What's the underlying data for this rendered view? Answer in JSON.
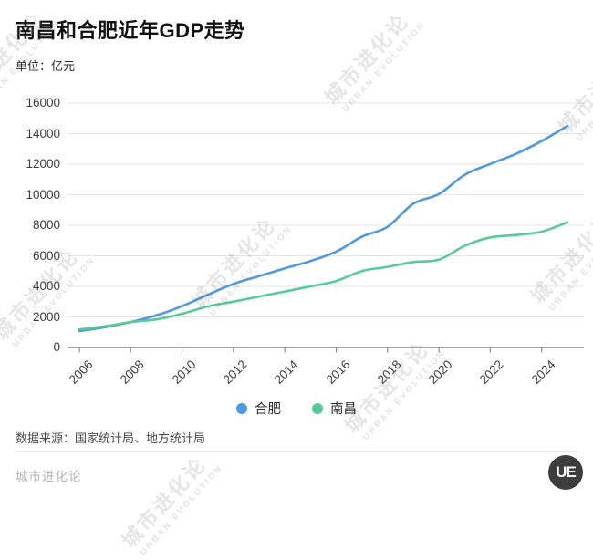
{
  "header": {
    "title": "南昌和合肥近年GDP走势",
    "unit_label": "单位：亿元"
  },
  "chart_data": {
    "type": "line",
    "x": [
      2006,
      2007,
      2008,
      2009,
      2010,
      2011,
      2012,
      2013,
      2014,
      2015,
      2016,
      2017,
      2018,
      2019,
      2020,
      2021,
      2022,
      2023,
      2024,
      2025
    ],
    "series": [
      {
        "name": "合肥",
        "color": "#4f99de",
        "values": [
          1074,
          1334,
          1665,
          2102,
          2702,
          3450,
          4164,
          4673,
          5181,
          5660,
          6274,
          7250,
          7900,
          9409,
          10046,
          11300,
          12013,
          12674,
          13508,
          14500
        ]
      },
      {
        "name": "南昌",
        "color": "#57cb97",
        "values": [
          1185,
          1390,
          1660,
          1838,
          2207,
          2689,
          3001,
          3336,
          3668,
          4000,
          4355,
          5003,
          5275,
          5596,
          5746,
          6651,
          7204,
          7360,
          7582,
          8200
        ]
      }
    ],
    "title": "南昌和合肥近年GDP走势",
    "xlabel": "",
    "ylabel": "亿元",
    "ylim": [
      0,
      16000
    ],
    "yticks": [
      0,
      2000,
      4000,
      6000,
      8000,
      10000,
      12000,
      14000,
      16000
    ],
    "xticks": [
      2006,
      2008,
      2010,
      2012,
      2014,
      2016,
      2018,
      2020,
      2022,
      2024
    ],
    "grid": true,
    "legend_position": "bottom"
  },
  "source": {
    "text": "数据来源：国家统计局、地方统计局"
  },
  "footer": {
    "brand": "城市进化论",
    "logo_text": "UE"
  },
  "watermark": {
    "cn": "城市进化论",
    "en": "URBAN EVOLUTION"
  }
}
